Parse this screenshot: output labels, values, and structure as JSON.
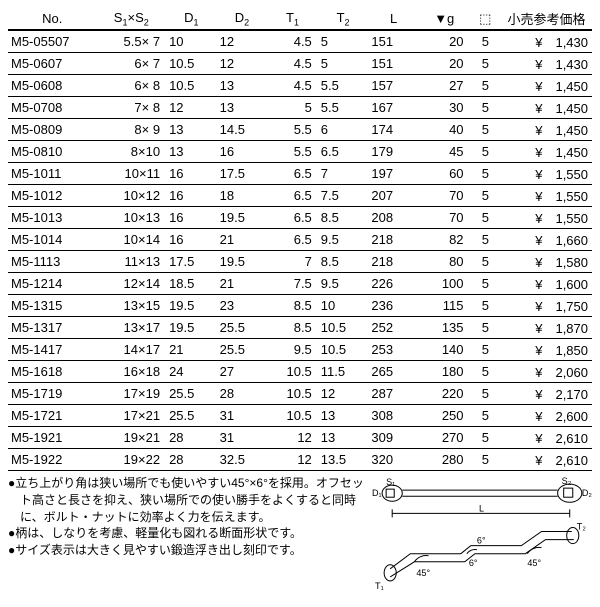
{
  "table": {
    "columns": {
      "no": "No.",
      "s": "S<span class=\"sub\">1</span>×S<span class=\"sub\">2</span>",
      "d1": "D<span class=\"sub\">1</span>",
      "d2": "D<span class=\"sub\">2</span>",
      "t1": "T<span class=\"sub\">1</span>",
      "t2": "T<span class=\"sub\">2</span>",
      "l": "L",
      "g": "▼g",
      "pack": "⬚",
      "price": "小売参考価格"
    },
    "rows": [
      {
        "no": "M5-05507",
        "s": "5.5× 7",
        "d1": "10",
        "d2": "12",
        "t1": "4.5",
        "t2": "5",
        "l": "151",
        "g": "20",
        "p": "5",
        "price": "1,430"
      },
      {
        "no": "M5-0607",
        "s": "6× 7",
        "d1": "10.5",
        "d2": "12",
        "t1": "4.5",
        "t2": "5",
        "l": "151",
        "g": "20",
        "p": "5",
        "price": "1,430"
      },
      {
        "no": "M5-0608",
        "s": "6× 8",
        "d1": "10.5",
        "d2": "13",
        "t1": "4.5",
        "t2": "5.5",
        "l": "157",
        "g": "27",
        "p": "5",
        "price": "1,450"
      },
      {
        "no": "M5-0708",
        "s": "7× 8",
        "d1": "12",
        "d2": "13",
        "t1": "5",
        "t2": "5.5",
        "l": "167",
        "g": "30",
        "p": "5",
        "price": "1,450"
      },
      {
        "no": "M5-0809",
        "s": "8× 9",
        "d1": "13",
        "d2": "14.5",
        "t1": "5.5",
        "t2": "6",
        "l": "174",
        "g": "40",
        "p": "5",
        "price": "1,450"
      },
      {
        "no": "M5-0810",
        "s": "8×10",
        "d1": "13",
        "d2": "16",
        "t1": "5.5",
        "t2": "6.5",
        "l": "179",
        "g": "45",
        "p": "5",
        "price": "1,450"
      },
      {
        "no": "M5-1011",
        "s": "10×11",
        "d1": "16",
        "d2": "17.5",
        "t1": "6.5",
        "t2": "7",
        "l": "197",
        "g": "60",
        "p": "5",
        "price": "1,550"
      },
      {
        "no": "M5-1012",
        "s": "10×12",
        "d1": "16",
        "d2": "18",
        "t1": "6.5",
        "t2": "7.5",
        "l": "207",
        "g": "70",
        "p": "5",
        "price": "1,550"
      },
      {
        "no": "M5-1013",
        "s": "10×13",
        "d1": "16",
        "d2": "19.5",
        "t1": "6.5",
        "t2": "8.5",
        "l": "208",
        "g": "70",
        "p": "5",
        "price": "1,550"
      },
      {
        "no": "M5-1014",
        "s": "10×14",
        "d1": "16",
        "d2": "21",
        "t1": "6.5",
        "t2": "9.5",
        "l": "218",
        "g": "82",
        "p": "5",
        "price": "1,660"
      },
      {
        "no": "M5-1113",
        "s": "11×13",
        "d1": "17.5",
        "d2": "19.5",
        "t1": "7",
        "t2": "8.5",
        "l": "218",
        "g": "80",
        "p": "5",
        "price": "1,580"
      },
      {
        "no": "M5-1214",
        "s": "12×14",
        "d1": "18.5",
        "d2": "21",
        "t1": "7.5",
        "t2": "9.5",
        "l": "226",
        "g": "100",
        "p": "5",
        "price": "1,600"
      },
      {
        "no": "M5-1315",
        "s": "13×15",
        "d1": "19.5",
        "d2": "23",
        "t1": "8.5",
        "t2": "10",
        "l": "236",
        "g": "115",
        "p": "5",
        "price": "1,750"
      },
      {
        "no": "M5-1317",
        "s": "13×17",
        "d1": "19.5",
        "d2": "25.5",
        "t1": "8.5",
        "t2": "10.5",
        "l": "252",
        "g": "135",
        "p": "5",
        "price": "1,870"
      },
      {
        "no": "M5-1417",
        "s": "14×17",
        "d1": "21",
        "d2": "25.5",
        "t1": "9.5",
        "t2": "10.5",
        "l": "253",
        "g": "140",
        "p": "5",
        "price": "1,850"
      },
      {
        "no": "M5-1618",
        "s": "16×18",
        "d1": "24",
        "d2": "27",
        "t1": "10.5",
        "t2": "11.5",
        "l": "265",
        "g": "180",
        "p": "5",
        "price": "2,060"
      },
      {
        "no": "M5-1719",
        "s": "17×19",
        "d1": "25.5",
        "d2": "28",
        "t1": "10.5",
        "t2": "12",
        "l": "287",
        "g": "220",
        "p": "5",
        "price": "2,170"
      },
      {
        "no": "M5-1721",
        "s": "17×21",
        "d1": "25.5",
        "d2": "31",
        "t1": "10.5",
        "t2": "13",
        "l": "308",
        "g": "250",
        "p": "5",
        "price": "2,600"
      },
      {
        "no": "M5-1921",
        "s": "19×21",
        "d1": "28",
        "d2": "31",
        "t1": "12",
        "t2": "13",
        "l": "309",
        "g": "270",
        "p": "5",
        "price": "2,610"
      },
      {
        "no": "M5-1922",
        "s": "19×22",
        "d1": "28",
        "d2": "32.5",
        "t1": "12",
        "t2": "13.5",
        "l": "320",
        "g": "280",
        "p": "5",
        "price": "2,610"
      }
    ],
    "currency": "¥"
  },
  "notes": {
    "n1": "●立ち上がり角は狭い場所でも使いやすい45°×6°を採用。オフセット高さと長さを抑え、狭い場所での使い勝手をよくすると同時に、ボルト・ナットに効率よく力を伝えます。",
    "n2": "●柄は、しなりを考慮、軽量化も図れる断面形状です。",
    "n3": "●サイズ表示は大きく見やすい鍛造浮き出し刻印です。"
  },
  "diagram": {
    "labels": {
      "d1": "D₁",
      "s1": "S₁",
      "s2": "S₂",
      "d2": "D₂",
      "l": "L",
      "t1": "T₁",
      "t2": "T₂",
      "a45": "45°",
      "a6": "6°"
    }
  },
  "style": {
    "text_color": "#000000",
    "bg_color": "#ffffff",
    "row_border": "#000000",
    "header_border_width": 2,
    "font_family": "MS PGothic",
    "table_fontsize": 13,
    "notes_fontsize": 12
  }
}
